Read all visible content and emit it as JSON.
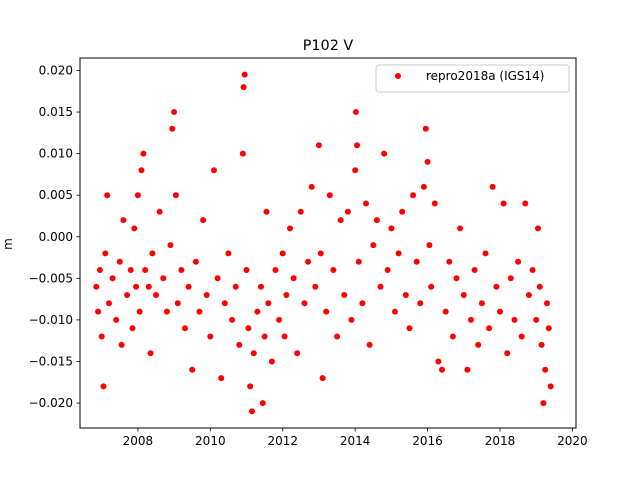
{
  "chart_data": {
    "type": "scatter",
    "title": "P102 V",
    "xlabel": "",
    "ylabel": "m",
    "xlim": [
      2006.4,
      2020.1
    ],
    "ylim": [
      -0.023,
      0.0215
    ],
    "xticks": [
      2008,
      2010,
      2012,
      2014,
      2016,
      2018,
      2020
    ],
    "xtick_labels": [
      "2008",
      "2010",
      "2012",
      "2014",
      "2016",
      "2018",
      "2020"
    ],
    "yticks": [
      -0.02,
      -0.015,
      -0.01,
      -0.005,
      0.0,
      0.005,
      0.01,
      0.015,
      0.02
    ],
    "ytick_labels": [
      "−0.020",
      "−0.015",
      "−0.010",
      "−0.005",
      "0.000",
      "0.005",
      "0.010",
      "0.015",
      "0.020"
    ],
    "grid": false,
    "legend_position": "top-right",
    "series": [
      {
        "name": "repro2018a (IGS14)",
        "color": "#ff0000",
        "marker": "circle",
        "points": [
          [
            2006.85,
            -0.006
          ],
          [
            2006.9,
            -0.009
          ],
          [
            2006.95,
            -0.004
          ],
          [
            2007.0,
            -0.012
          ],
          [
            2007.05,
            -0.018
          ],
          [
            2007.1,
            -0.002
          ],
          [
            2007.15,
            0.005
          ],
          [
            2007.2,
            -0.008
          ],
          [
            2007.3,
            -0.005
          ],
          [
            2007.4,
            -0.01
          ],
          [
            2007.5,
            -0.003
          ],
          [
            2007.55,
            -0.013
          ],
          [
            2007.6,
            0.002
          ],
          [
            2007.7,
            -0.007
          ],
          [
            2007.8,
            -0.004
          ],
          [
            2007.85,
            -0.011
          ],
          [
            2007.9,
            0.001
          ],
          [
            2007.95,
            -0.006
          ],
          [
            2008.0,
            0.005
          ],
          [
            2008.05,
            -0.009
          ],
          [
            2008.1,
            0.008
          ],
          [
            2008.15,
            0.01
          ],
          [
            2008.2,
            -0.004
          ],
          [
            2008.3,
            -0.006
          ],
          [
            2008.35,
            -0.014
          ],
          [
            2008.4,
            -0.002
          ],
          [
            2008.5,
            -0.007
          ],
          [
            2008.6,
            0.003
          ],
          [
            2008.7,
            -0.005
          ],
          [
            2008.8,
            -0.009
          ],
          [
            2008.9,
            -0.001
          ],
          [
            2008.95,
            0.013
          ],
          [
            2009.0,
            0.015
          ],
          [
            2009.05,
            0.005
          ],
          [
            2009.1,
            -0.008
          ],
          [
            2009.2,
            -0.004
          ],
          [
            2009.3,
            -0.011
          ],
          [
            2009.4,
            -0.006
          ],
          [
            2009.5,
            -0.016
          ],
          [
            2009.6,
            -0.003
          ],
          [
            2009.7,
            -0.009
          ],
          [
            2009.8,
            0.002
          ],
          [
            2009.9,
            -0.007
          ],
          [
            2010.0,
            -0.012
          ],
          [
            2010.1,
            0.008
          ],
          [
            2010.2,
            -0.005
          ],
          [
            2010.3,
            -0.017
          ],
          [
            2010.4,
            -0.008
          ],
          [
            2010.5,
            -0.002
          ],
          [
            2010.6,
            -0.01
          ],
          [
            2010.7,
            -0.006
          ],
          [
            2010.8,
            -0.013
          ],
          [
            2010.9,
            0.01
          ],
          [
            2010.92,
            0.018
          ],
          [
            2010.95,
            0.0195
          ],
          [
            2011.0,
            -0.004
          ],
          [
            2011.05,
            -0.011
          ],
          [
            2011.1,
            -0.018
          ],
          [
            2011.15,
            -0.021
          ],
          [
            2011.2,
            -0.014
          ],
          [
            2011.3,
            -0.009
          ],
          [
            2011.4,
            -0.006
          ],
          [
            2011.45,
            -0.02
          ],
          [
            2011.5,
            -0.012
          ],
          [
            2011.55,
            0.003
          ],
          [
            2011.6,
            -0.008
          ],
          [
            2011.7,
            -0.015
          ],
          [
            2011.8,
            -0.004
          ],
          [
            2011.9,
            -0.01
          ],
          [
            2012.0,
            -0.002
          ],
          [
            2012.05,
            -0.012
          ],
          [
            2012.1,
            -0.007
          ],
          [
            2012.2,
            0.001
          ],
          [
            2012.3,
            -0.005
          ],
          [
            2012.4,
            -0.014
          ],
          [
            2012.5,
            0.003
          ],
          [
            2012.6,
            -0.008
          ],
          [
            2012.7,
            -0.003
          ],
          [
            2012.8,
            0.006
          ],
          [
            2012.9,
            -0.006
          ],
          [
            2013.0,
            0.011
          ],
          [
            2013.05,
            -0.002
          ],
          [
            2013.1,
            -0.017
          ],
          [
            2013.2,
            -0.009
          ],
          [
            2013.3,
            0.005
          ],
          [
            2013.4,
            -0.004
          ],
          [
            2013.5,
            -0.012
          ],
          [
            2013.6,
            0.002
          ],
          [
            2013.7,
            -0.007
          ],
          [
            2013.8,
            0.003
          ],
          [
            2013.9,
            -0.01
          ],
          [
            2014.0,
            0.008
          ],
          [
            2014.02,
            0.015
          ],
          [
            2014.05,
            0.011
          ],
          [
            2014.1,
            -0.003
          ],
          [
            2014.2,
            -0.008
          ],
          [
            2014.3,
            0.004
          ],
          [
            2014.4,
            -0.013
          ],
          [
            2014.5,
            -0.001
          ],
          [
            2014.6,
            0.002
          ],
          [
            2014.7,
            -0.006
          ],
          [
            2014.8,
            0.01
          ],
          [
            2014.9,
            -0.004
          ],
          [
            2015.0,
            0.001
          ],
          [
            2015.1,
            -0.009
          ],
          [
            2015.2,
            -0.002
          ],
          [
            2015.3,
            0.003
          ],
          [
            2015.4,
            -0.007
          ],
          [
            2015.5,
            -0.011
          ],
          [
            2015.6,
            0.005
          ],
          [
            2015.7,
            -0.003
          ],
          [
            2015.8,
            -0.008
          ],
          [
            2015.9,
            0.006
          ],
          [
            2015.95,
            0.013
          ],
          [
            2016.0,
            0.009
          ],
          [
            2016.05,
            -0.001
          ],
          [
            2016.1,
            -0.006
          ],
          [
            2016.2,
            0.004
          ],
          [
            2016.3,
            -0.015
          ],
          [
            2016.4,
            -0.016
          ],
          [
            2016.5,
            -0.009
          ],
          [
            2016.6,
            -0.003
          ],
          [
            2016.7,
            -0.012
          ],
          [
            2016.8,
            -0.005
          ],
          [
            2016.9,
            0.001
          ],
          [
            2017.0,
            -0.007
          ],
          [
            2017.1,
            -0.016
          ],
          [
            2017.2,
            -0.01
          ],
          [
            2017.3,
            -0.004
          ],
          [
            2017.4,
            -0.013
          ],
          [
            2017.5,
            -0.008
          ],
          [
            2017.6,
            -0.002
          ],
          [
            2017.7,
            -0.011
          ],
          [
            2017.8,
            0.006
          ],
          [
            2017.9,
            -0.006
          ],
          [
            2018.0,
            -0.009
          ],
          [
            2018.1,
            0.004
          ],
          [
            2018.2,
            -0.014
          ],
          [
            2018.3,
            -0.005
          ],
          [
            2018.4,
            -0.01
          ],
          [
            2018.5,
            -0.003
          ],
          [
            2018.6,
            -0.012
          ],
          [
            2018.7,
            0.004
          ],
          [
            2018.8,
            -0.007
          ],
          [
            2018.9,
            -0.004
          ],
          [
            2019.0,
            -0.01
          ],
          [
            2019.05,
            0.001
          ],
          [
            2019.1,
            -0.006
          ],
          [
            2019.15,
            -0.013
          ],
          [
            2019.2,
            -0.02
          ],
          [
            2019.25,
            -0.016
          ],
          [
            2019.3,
            -0.008
          ],
          [
            2019.35,
            -0.011
          ],
          [
            2019.4,
            -0.018
          ]
        ]
      }
    ]
  }
}
